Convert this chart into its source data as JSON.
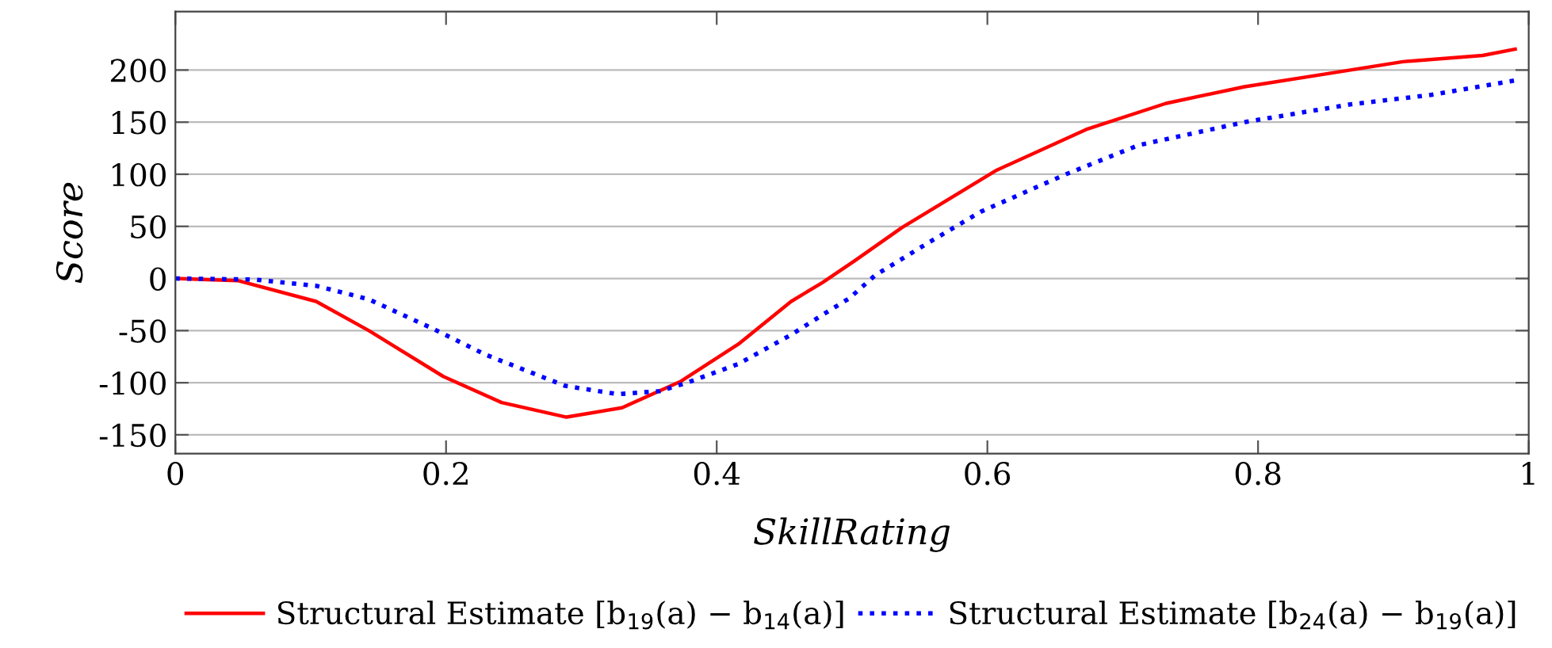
{
  "chart_data": {
    "type": "line",
    "xlabel": "SkillRating",
    "ylabel": "Score",
    "xlim": [
      0,
      1
    ],
    "xticks": [
      0,
      0.2,
      0.4,
      0.6,
      0.8,
      1
    ],
    "ylim": [
      -168,
      256
    ],
    "yticks": [
      -150,
      -100,
      -50,
      0,
      50,
      100,
      150,
      200
    ],
    "grid": "y",
    "legend": "bottom",
    "series": [
      {
        "name": "Structural Estimate [b$_{19}$(a) − b$_{14}$(a)]",
        "color": "#ff0000",
        "line_style": "solid",
        "x": [
          0,
          0.046,
          0.104,
          0.143,
          0.198,
          0.241,
          0.289,
          0.33,
          0.373,
          0.416,
          0.455,
          0.478,
          0.502,
          0.537,
          0.607,
          0.673,
          0.732,
          0.79,
          0.849,
          0.907,
          0.966,
          0.99
        ],
        "values": [
          0,
          -2,
          -22,
          -50,
          -94,
          -119,
          -133,
          -124,
          -99,
          -63,
          -22,
          -4,
          17,
          49,
          104,
          143,
          168,
          184,
          196,
          208,
          214,
          220
        ]
      },
      {
        "name": "Structural Estimate [b$_{24}$(a) − b$_{19}$(a)]",
        "color": "#0000ff",
        "line_style": "dotted",
        "x": [
          0,
          0.058,
          0.104,
          0.143,
          0.19,
          0.229,
          0.288,
          0.327,
          0.358,
          0.378,
          0.416,
          0.455,
          0.478,
          0.498,
          0.517,
          0.556,
          0.595,
          0.658,
          0.712,
          0.79,
          0.868,
          0.927,
          0.99
        ],
        "values": [
          0,
          -1,
          -7,
          -20,
          -48,
          -73,
          -103,
          -111,
          -108,
          -100,
          -82,
          -54,
          -35,
          -19,
          3,
          34,
          64,
          100,
          128,
          150,
          167,
          176,
          190
        ]
      }
    ]
  }
}
